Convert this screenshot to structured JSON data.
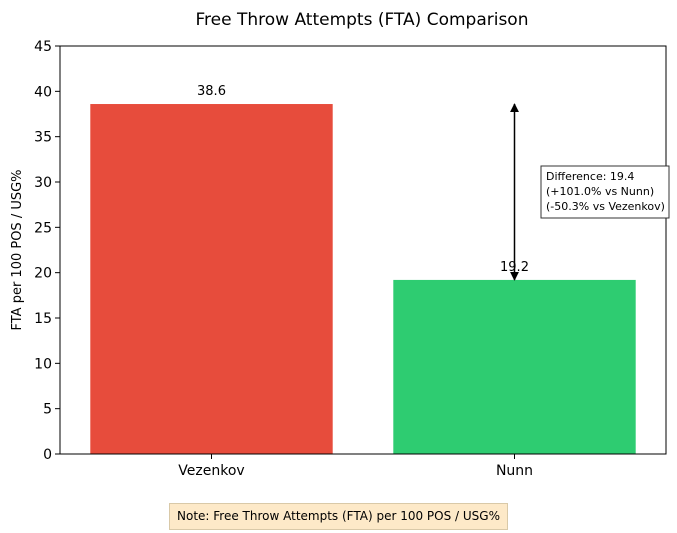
{
  "chart_data": {
    "type": "bar",
    "title": "Free Throw Attempts (FTA) Comparison",
    "xlabel": "",
    "ylabel": "FTA per 100 POS / USG%",
    "categories": [
      "Vezenkov",
      "Nunn"
    ],
    "values": [
      38.6,
      19.2
    ],
    "value_labels": [
      "38.6",
      "19.2"
    ],
    "colors": [
      "#e74c3c",
      "#2ecc71"
    ],
    "ylim": [
      0,
      45
    ],
    "yticks": [
      0,
      5,
      10,
      15,
      20,
      25,
      30,
      35,
      40,
      45
    ],
    "grid": false,
    "annotation": {
      "lines": [
        "Difference: 19.4",
        "(+101.0% vs Nunn)",
        "(-50.3% vs Vezenkov)"
      ],
      "arrow_from": 38.6,
      "arrow_to": 19.2
    }
  },
  "note": "Note: Free Throw Attempts (FTA) per 100 POS / USG%"
}
